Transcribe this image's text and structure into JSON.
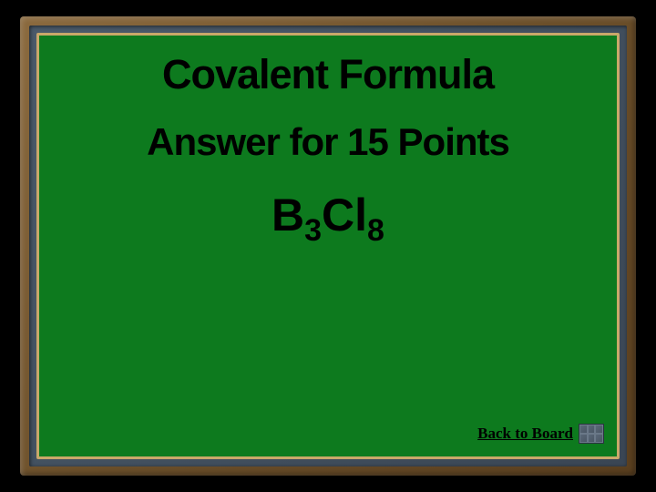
{
  "colors": {
    "page_bg": "#000000",
    "outer_frame_light": "#8b6a3e",
    "outer_frame_dark": "#5a3f1f",
    "mid_frame_light": "#4a5a6a",
    "mid_frame_dark": "#3a4654",
    "inner_border": "#c9a86a",
    "content_bg": "#0d7a1e",
    "text_color": "#000000"
  },
  "typography": {
    "title_fontsize": 45,
    "subtitle_fontsize": 42,
    "formula_fontsize": 50,
    "formula_sub_fontsize": 34,
    "backlink_fontsize": 17,
    "title_weight": "bold"
  },
  "card": {
    "title": "Covalent Formula",
    "subtitle": "Answer for 15 Points",
    "formula": {
      "parts": [
        {
          "text": "B",
          "sub": false
        },
        {
          "text": "3",
          "sub": true
        },
        {
          "text": "Cl",
          "sub": false
        },
        {
          "text": "8",
          "sub": true
        }
      ],
      "display": "B3Cl8"
    }
  },
  "nav": {
    "back_label": "Back to Board"
  }
}
